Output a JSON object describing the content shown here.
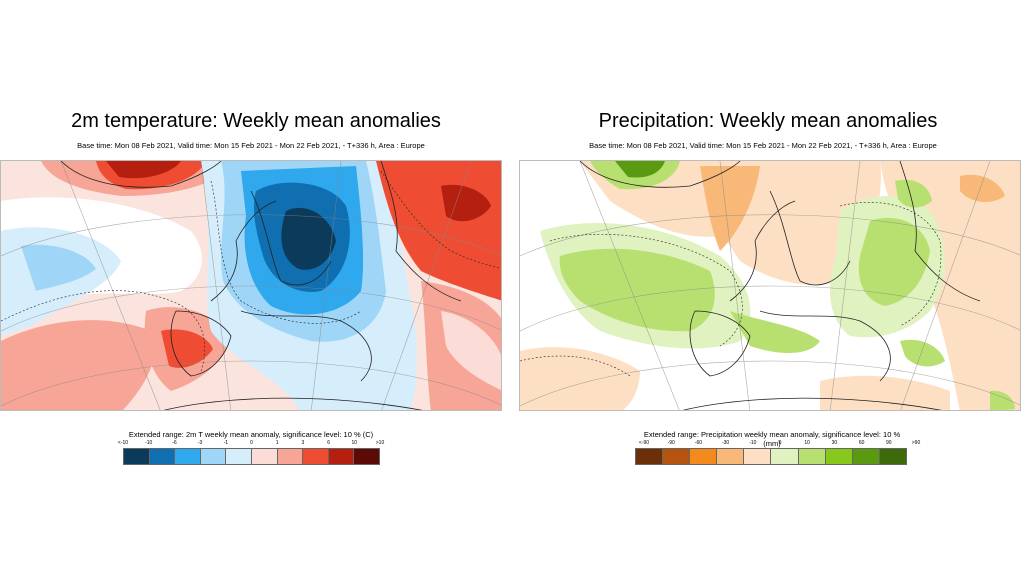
{
  "temperature_panel": {
    "title": "2m temperature: Weekly mean anomalies",
    "subtitle": "Base time: Mon 08 Feb 2021, Valid time: Mon 15 Feb 2021 - Mon 22 Feb 2021, - T+336 h, Area : Europe",
    "legend_title": "Extended range: 2m T weekly mean anomaly, significance level: 10 % (C)",
    "legend_ticks": [
      "<-10",
      "-10",
      "-6",
      "-3",
      "-1",
      "0",
      "1",
      "3",
      "6",
      "10",
      ">10"
    ],
    "legend_colors": [
      "#0b3a5a",
      "#0f6fb0",
      "#2fa8ee",
      "#9fd6f7",
      "#d6eefc",
      "#fbdcd6",
      "#f7a596",
      "#ee4d33",
      "#b51f10",
      "#5c0a05"
    ]
  },
  "precipitation_panel": {
    "title": "Precipitation: Weekly mean anomalies",
    "subtitle": "Base time: Mon 08 Feb 2021, Valid time: Mon 15 Feb 2021 - Mon 22 Feb 2021, - T+336 h, Area : Europe",
    "legend_title": "Extended range: Precipitation weekly mean anomaly, significance level: 10 % (mm)",
    "legend_ticks": [
      "<-90",
      "-90",
      "-60",
      "-30",
      "-10",
      "0",
      "10",
      "30",
      "60",
      "90",
      ">90"
    ],
    "legend_colors": [
      "#6b2f0a",
      "#b4540e",
      "#f28a1e",
      "#f7b878",
      "#fde0c4",
      "#e0f2c0",
      "#b8e070",
      "#86c81e",
      "#5a9a10",
      "#3d6a0a"
    ]
  }
}
